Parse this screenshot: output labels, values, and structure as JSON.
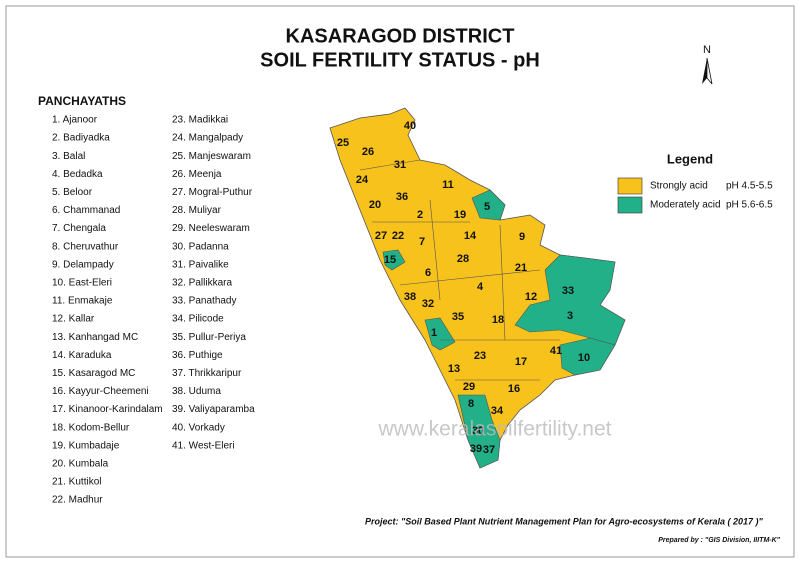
{
  "header": {
    "title_line1": "KASARAGOD DISTRICT",
    "title_line2": "SOIL FERTILITY STATUS - pH",
    "north": "N"
  },
  "panchayaths": {
    "heading": "PANCHAYATHS",
    "items": [
      "1. Ajanoor",
      "2. Badiyadka",
      "3. Balal",
      "4. Bedadka",
      "5. Beloor",
      "6. Chammanad",
      "7. Chengala",
      "8. Cheruvathur",
      "9. Delampady",
      "10. East-Eleri",
      "11. Enmakaje",
      "12. Kallar",
      "13. Kanhangad MC",
      "14. Karaduka",
      "15. Kasaragod MC",
      "16. Kayyur-Cheemeni",
      "17. Kinanoor-Karindalam",
      "18. Kodom-Bellur",
      "19. Kumbadaje",
      "20. Kumbala",
      "21. Kuttikol",
      "22. Madhur",
      "23. Madikkai",
      "24. Mangalpady",
      "25. Manjeswaram",
      "26. Meenja",
      "27. Mogral-Puthur",
      "28. Muliyar",
      "29. Neeleswaram",
      "30. Padanna",
      "31. Paivalike",
      "32. Pallikkara",
      "33. Panathady",
      "34. Pilicode",
      "35. Pullur-Periya",
      "36. Puthige",
      "37. Thrikkaripur",
      "38. Uduma",
      "39. Valiyaparamba",
      "40. Vorkady",
      "41. West-Eleri"
    ]
  },
  "legend": {
    "title": "Legend",
    "entries": [
      {
        "label": "Strongly acid",
        "range": "pH 4.5-5.5",
        "color": "#f7c21b"
      },
      {
        "label": "Moderately acid",
        "range": "pH 5.6-6.5",
        "color": "#21b088"
      }
    ]
  },
  "map": {
    "labels": [
      "40",
      "25",
      "26",
      "31",
      "24",
      "11",
      "5",
      "36",
      "20",
      "2",
      "19",
      "27",
      "22",
      "7",
      "14",
      "9",
      "15",
      "28",
      "6",
      "21",
      "33",
      "4",
      "38",
      "12",
      "32",
      "3",
      "35",
      "18",
      "1",
      "41",
      "10",
      "23",
      "17",
      "13",
      "29",
      "16",
      "8",
      "34",
      "30",
      "39",
      "37"
    ]
  },
  "footer": {
    "watermark": "www.keralasoilfertility.net",
    "project": "Project: \"Soil Based Plant Nutrient Management Plan for Agro-ecosystems of Kerala ( 2017 )\"",
    "prepared_by": "Prepared by : \"GIS Division, IIITM-K\""
  }
}
